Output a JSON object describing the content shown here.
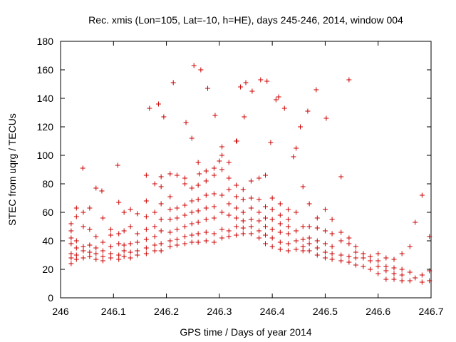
{
  "chart_data": {
    "type": "scatter",
    "title": "Rec. xmis (Lon=105, Lat=-10, h=HE), days 245-246, 2014, window 004",
    "xlabel": "GPS time / Days of year 2014",
    "ylabel": "STEC from uqrg / TECUs",
    "xlim": [
      246,
      246.7
    ],
    "ylim": [
      0,
      180
    ],
    "xticks": [
      "246",
      "246.1",
      "246.2",
      "246.3",
      "246.4",
      "246.5",
      "246.6",
      "246.7"
    ],
    "yticks": [
      "0",
      "20",
      "40",
      "60",
      "80",
      "100",
      "120",
      "140",
      "160",
      "180"
    ],
    "grid": false,
    "legend": "none",
    "marker": "plus",
    "color": "#cc0000",
    "series": [
      {
        "x": [
          246.02,
          246.02,
          246.02,
          246.02,
          246.02,
          246.02,
          246.02,
          246.03,
          246.03,
          246.03,
          246.03,
          246.03,
          246.03,
          246.043,
          246.043,
          246.043,
          246.043,
          246.043,
          246.055,
          246.055,
          246.055,
          246.055,
          246.055,
          246.067,
          246.067,
          246.067,
          246.067,
          246.067,
          246.08,
          246.08,
          246.08,
          246.08,
          246.08,
          246.095,
          246.095,
          246.095,
          246.095,
          246.095,
          246.11,
          246.11,
          246.11,
          246.11,
          246.11,
          246.12,
          246.12,
          246.12,
          246.12,
          246.12,
          246.132,
          246.132,
          246.132,
          246.132,
          246.132,
          246.145,
          246.145,
          246.145,
          246.145,
          246.145,
          246.162,
          246.162,
          246.162,
          246.162,
          246.162,
          246.162,
          246.162,
          246.178,
          246.178,
          246.178,
          246.178,
          246.178,
          246.178,
          246.19,
          246.19,
          246.19,
          246.19,
          246.19,
          246.19,
          246.19,
          246.207,
          246.207,
          246.207,
          246.207,
          246.207,
          246.207,
          246.207,
          246.22,
          246.22,
          246.22,
          246.22,
          246.22,
          246.22,
          246.235,
          246.235,
          246.235,
          246.235,
          246.235,
          246.235,
          246.235,
          246.248,
          246.248,
          246.248,
          246.248,
          246.248,
          246.248,
          246.248,
          246.26,
          246.26,
          246.26,
          246.26,
          246.26,
          246.26,
          246.26,
          246.275,
          246.275,
          246.275,
          246.275,
          246.275,
          246.275,
          246.275,
          246.29,
          246.29,
          246.29,
          246.29,
          246.29,
          246.29,
          246.29,
          246.305,
          246.305,
          246.305,
          246.305,
          246.305,
          246.305,
          246.305,
          246.318,
          246.318,
          246.318,
          246.318,
          246.318,
          246.318,
          246.318,
          246.332,
          246.332,
          246.332,
          246.332,
          246.332,
          246.332,
          246.332,
          246.345,
          246.345,
          246.345,
          246.345,
          246.345,
          246.345,
          246.36,
          246.36,
          246.36,
          246.36,
          246.36,
          246.36,
          246.375,
          246.375,
          246.375,
          246.375,
          246.375,
          246.375,
          246.387,
          246.387,
          246.387,
          246.387,
          246.387,
          246.387,
          246.4,
          246.4,
          246.4,
          246.4,
          246.4,
          246.4,
          246.415,
          246.415,
          246.415,
          246.415,
          246.415,
          246.415,
          246.43,
          246.43,
          246.43,
          246.43,
          246.43,
          246.43,
          246.445,
          246.445,
          246.445,
          246.445,
          246.445,
          246.458,
          246.458,
          246.458,
          246.458,
          246.458,
          246.47,
          246.47,
          246.47,
          246.47,
          246.47,
          246.485,
          246.485,
          246.485,
          246.485,
          246.485,
          246.5,
          246.5,
          246.5,
          246.5,
          246.5,
          246.513,
          246.513,
          246.513,
          246.513,
          246.513,
          246.53,
          246.53,
          246.53,
          246.53,
          246.545,
          246.545,
          246.545,
          246.545,
          246.558,
          246.558,
          246.558,
          246.558,
          246.572,
          246.572,
          246.572,
          246.585,
          246.585,
          246.585,
          246.6,
          246.6,
          246.6,
          246.6,
          246.615,
          246.615,
          246.615,
          246.615,
          246.63,
          246.63,
          246.63,
          246.63,
          246.645,
          246.645,
          246.645,
          246.645,
          246.66,
          246.66,
          246.66,
          246.67,
          246.67,
          246.683,
          246.683,
          246.683,
          246.697,
          246.697,
          246.697,
          246.042,
          246.078,
          246.108,
          246.168,
          246.185,
          246.195,
          246.213,
          246.252,
          246.265,
          246.278,
          246.292,
          246.333,
          246.34,
          246.35,
          246.362,
          246.378,
          246.39,
          246.407,
          246.412,
          246.423,
          246.453,
          246.467,
          246.483,
          246.502,
          246.53,
          246.545,
          246.237,
          246.262,
          246.3,
          246.347,
          246.397,
          246.44
        ],
        "y": [
          24,
          28,
          31,
          38,
          42,
          47,
          52,
          27,
          30,
          35,
          40,
          57,
          63,
          28,
          33,
          36,
          50,
          60,
          29,
          32,
          37,
          48,
          63,
          27,
          31,
          35,
          43,
          77,
          26,
          29,
          33,
          39,
          56,
          28,
          31,
          36,
          44,
          48,
          27,
          30,
          38,
          45,
          67,
          29,
          33,
          37,
          47,
          60,
          28,
          32,
          38,
          50,
          62,
          30,
          33,
          39,
          45,
          59,
          31,
          35,
          41,
          48,
          57,
          68,
          86,
          33,
          37,
          43,
          50,
          60,
          80,
          33,
          38,
          47,
          55,
          66,
          78,
          85,
          36,
          40,
          46,
          55,
          62,
          71,
          87,
          37,
          41,
          48,
          56,
          63,
          86,
          38,
          43,
          50,
          58,
          65,
          80,
          84,
          39,
          44,
          52,
          60,
          68,
          77,
          112,
          39,
          45,
          53,
          61,
          69,
          79,
          95,
          40,
          46,
          55,
          63,
          72,
          82,
          89,
          39,
          45,
          56,
          64,
          73,
          86,
          91,
          42,
          48,
          60,
          72,
          90,
          100,
          106,
          43,
          47,
          58,
          66,
          76,
          84,
          95,
          44,
          50,
          56,
          63,
          71,
          79,
          110,
          45,
          49,
          54,
          60,
          69,
          76,
          45,
          50,
          55,
          63,
          70,
          82,
          42,
          47,
          54,
          60,
          69,
          84,
          38,
          44,
          50,
          56,
          64,
          86,
          36,
          42,
          48,
          55,
          62,
          70,
          34,
          39,
          46,
          52,
          58,
          66,
          33,
          38,
          45,
          50,
          55,
          62,
          34,
          40,
          47,
          60,
          105,
          33,
          36,
          41,
          50,
          78,
          33,
          38,
          42,
          50,
          66,
          30,
          35,
          40,
          49,
          56,
          28,
          32,
          38,
          47,
          62,
          27,
          31,
          36,
          45,
          55,
          26,
          30,
          40,
          46,
          25,
          29,
          38,
          42,
          23,
          28,
          32,
          36,
          22,
          28,
          31,
          20,
          26,
          29,
          17,
          22,
          26,
          31,
          13,
          19,
          22,
          28,
          13,
          17,
          21,
          27,
          12,
          16,
          20,
          31,
          12,
          18,
          36,
          14,
          53,
          11,
          16,
          72,
          12,
          19,
          43,
          91,
          75,
          93,
          133,
          136,
          127,
          151,
          163,
          160,
          147,
          128,
          110,
          148,
          151,
          145,
          153,
          152,
          139,
          141,
          133,
          120,
          131,
          146,
          126,
          85,
          153,
          123,
          87,
          96,
          127,
          109,
          99
        ]
      }
    ]
  }
}
